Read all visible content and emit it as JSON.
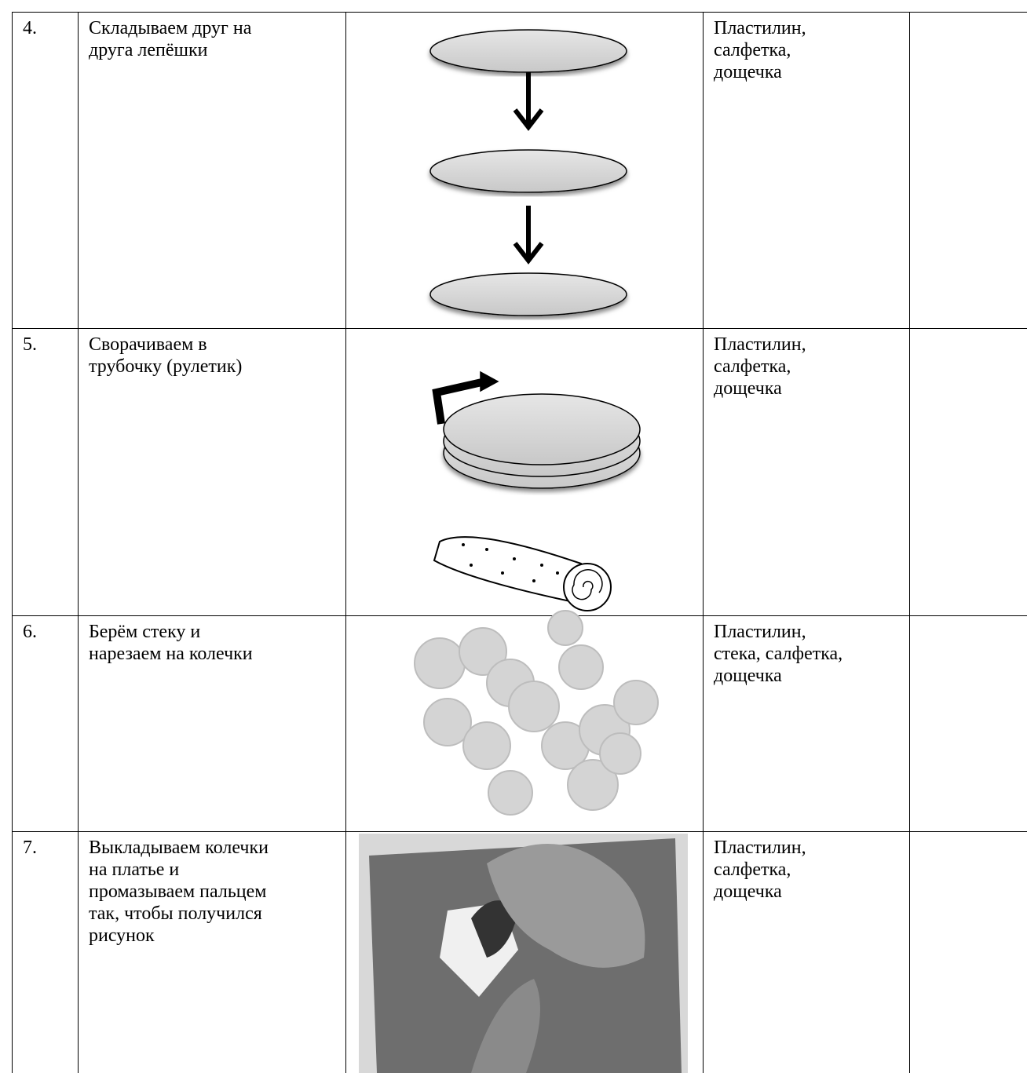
{
  "table": {
    "rows": [
      {
        "step": "4.",
        "text": [
          "Складываем друг на",
          "друга лепёшки"
        ],
        "materials": [
          "Пластилин,",
          "салфетка,",
          "дощечка"
        ]
      },
      {
        "step": "5.",
        "text": [
          "Сворачиваем в",
          "трубочку (рулетик)"
        ],
        "materials": [
          "Пластилин,",
          "салфетка,",
          "дощечка"
        ]
      },
      {
        "step": "6.",
        "text": [
          "Берём стеку и",
          "нарезаем на колечки"
        ],
        "materials": [
          "Пластилин,",
          "стека, салфетка,",
          "дощечка"
        ]
      },
      {
        "step": "7.",
        "text": [
          "Выкладываем колечки",
          "на платье и",
          "промазываем пальцем",
          "так, чтобы получился",
          "рисунок"
        ],
        "materials": [
          "Пластилин,",
          "салфетка,",
          "дощечка"
        ]
      }
    ]
  }
}
